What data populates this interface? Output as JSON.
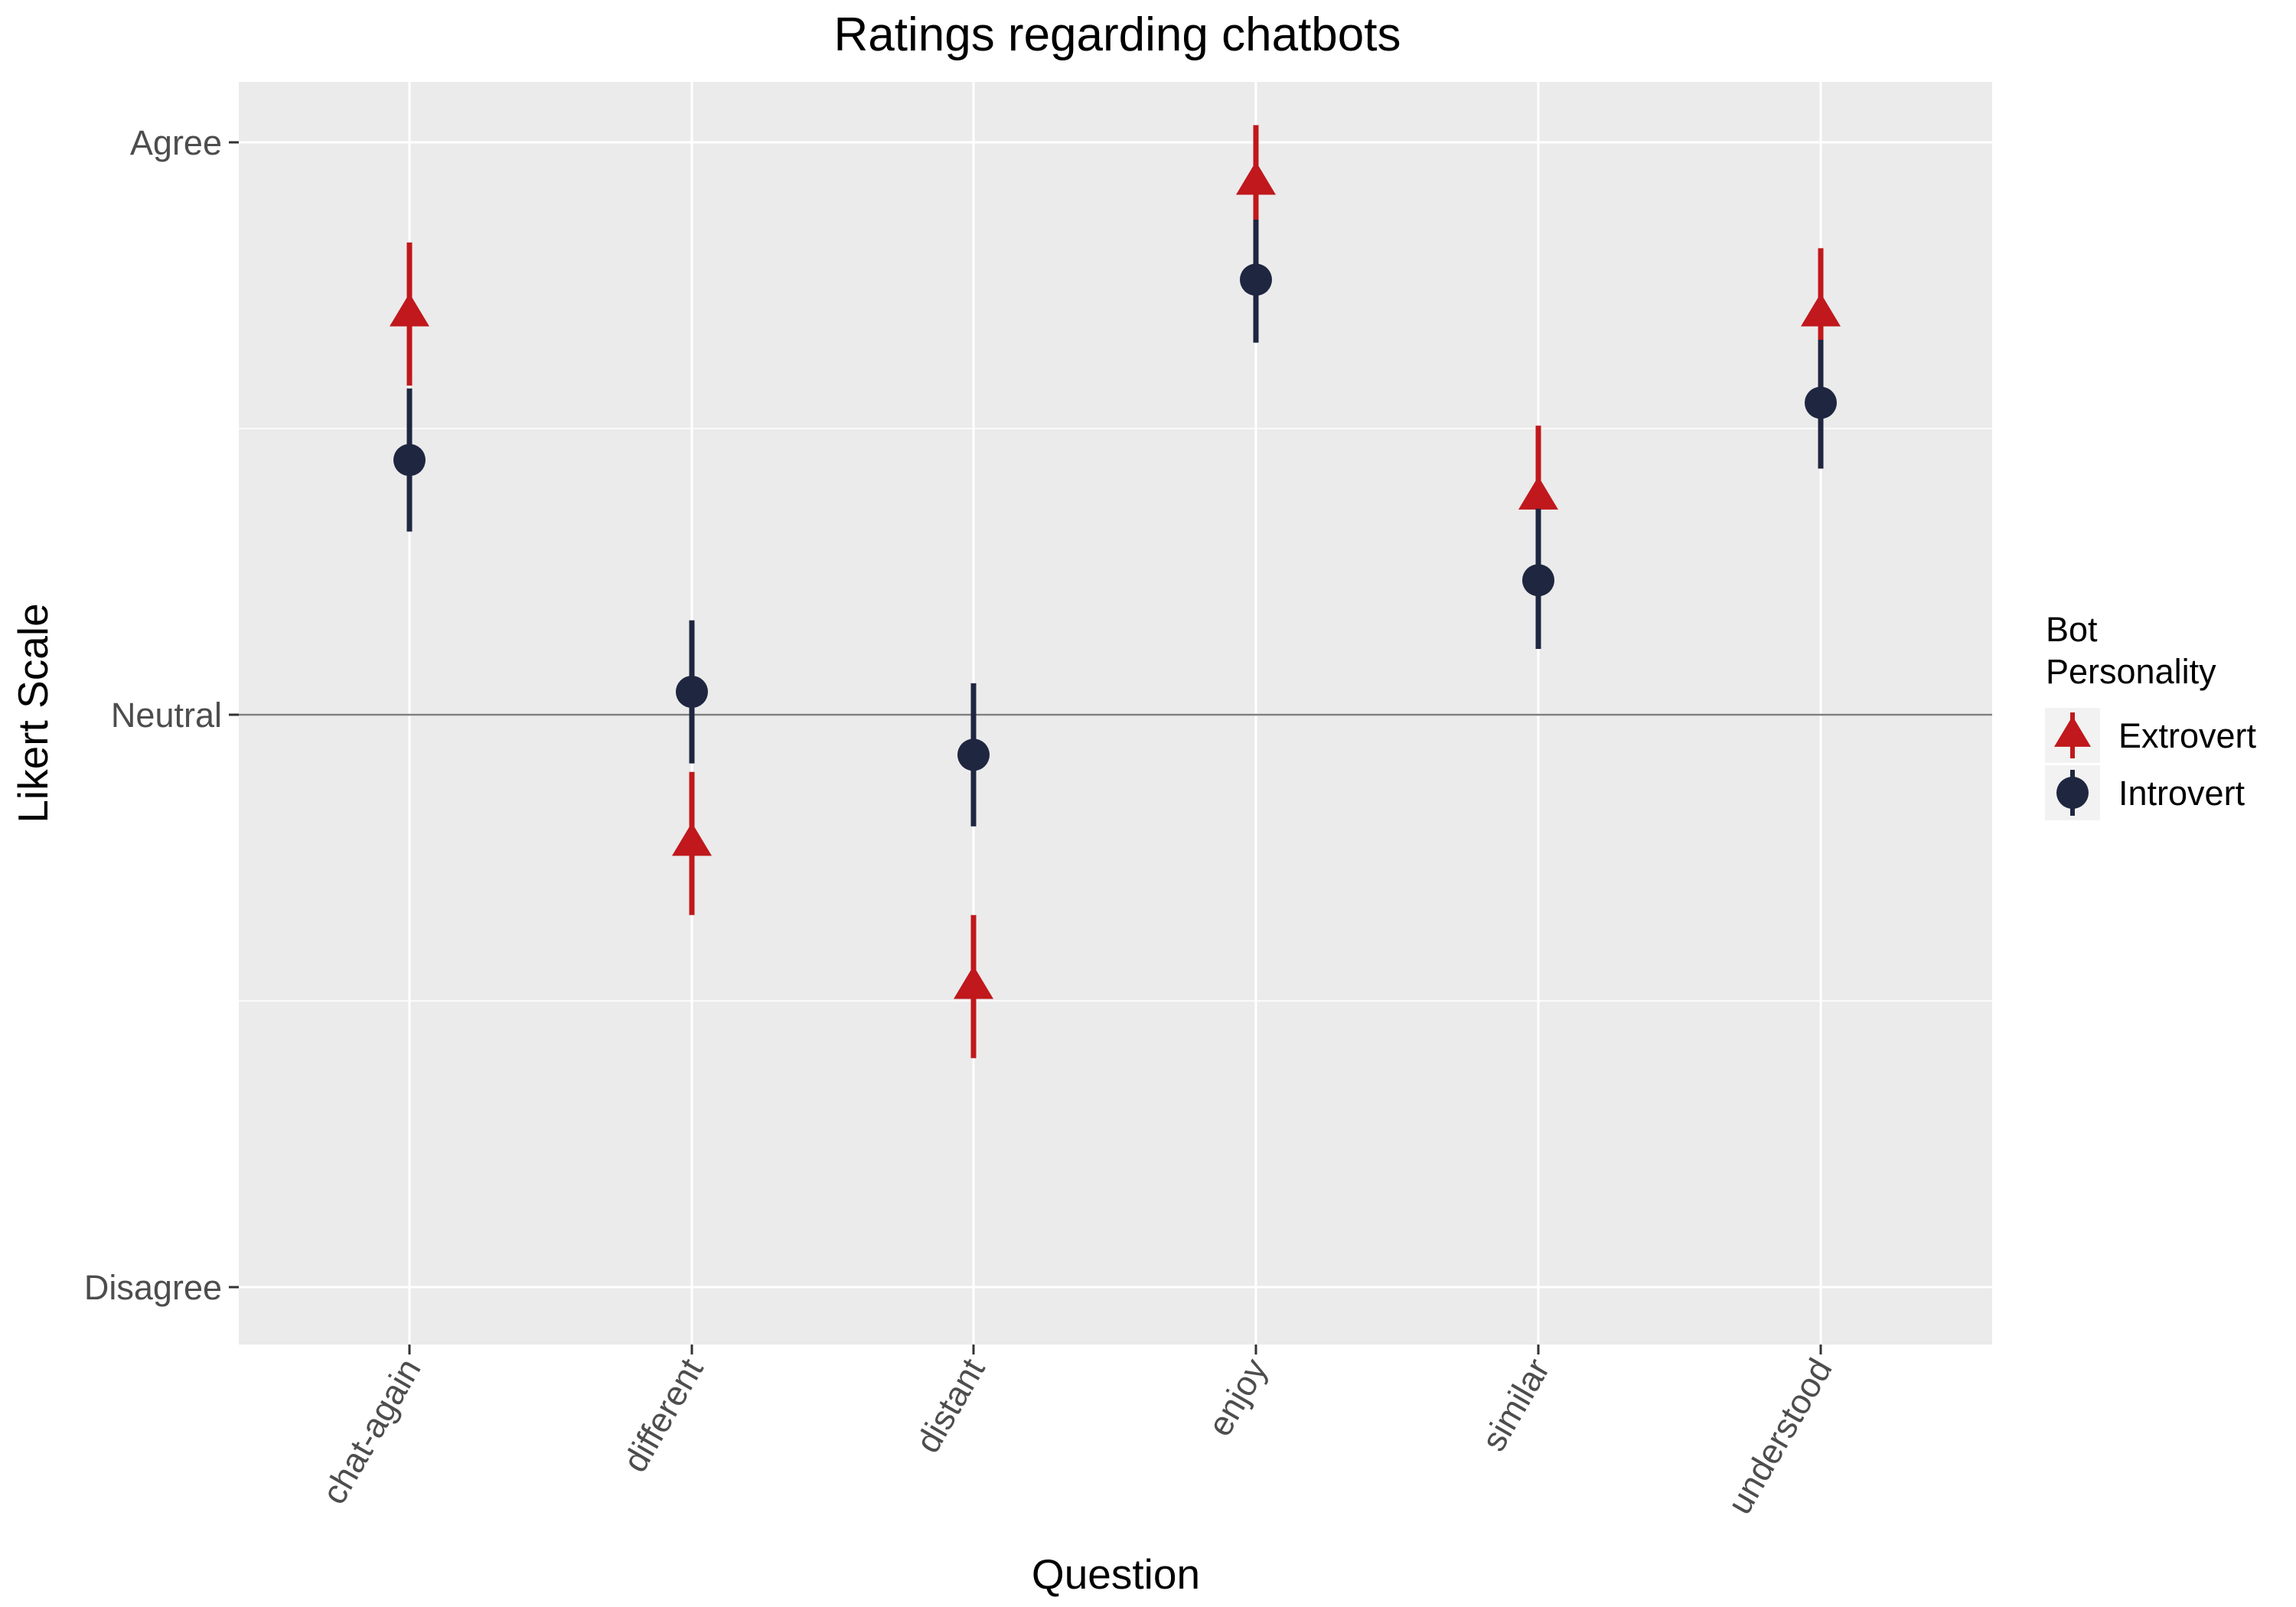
{
  "chart_data": {
    "type": "scatter",
    "title": "Ratings regarding chatbots",
    "xlabel": "Question",
    "ylabel": "Likert Scale",
    "categories": [
      "chat-again",
      "different",
      "distant",
      "enjoy",
      "similar",
      "understood"
    ],
    "y_ticks": [
      {
        "value": -1,
        "label": "Disagree"
      },
      {
        "value": 0,
        "label": "Neutral"
      },
      {
        "value": 1,
        "label": "Agree"
      }
    ],
    "ylim": [
      -1.1,
      1.1
    ],
    "reference_line": {
      "y": 0,
      "color": "#808080"
    },
    "grid": true,
    "legend": {
      "title": "Bot\nPersonality",
      "title_lines": [
        "Bot",
        "Personality"
      ],
      "position": "right"
    },
    "series": [
      {
        "name": "Extrovert",
        "marker": "triangle",
        "color": "#c0181c",
        "values": [
          0.7,
          -0.225,
          -0.475,
          0.93,
          0.38,
          0.7
        ],
        "lower": [
          0.575,
          -0.35,
          -0.6,
          0.865,
          0.25,
          0.56
        ],
        "upper": [
          0.825,
          -0.1,
          -0.35,
          1.03,
          0.505,
          0.815
        ]
      },
      {
        "name": "Introvert",
        "marker": "circle",
        "color": "#1f2640",
        "values": [
          0.445,
          0.04,
          -0.07,
          0.76,
          0.235,
          0.545
        ],
        "lower": [
          0.32,
          -0.085,
          -0.195,
          0.65,
          0.115,
          0.43
        ],
        "upper": [
          0.57,
          0.165,
          0.055,
          0.865,
          0.36,
          0.655
        ]
      }
    ]
  }
}
